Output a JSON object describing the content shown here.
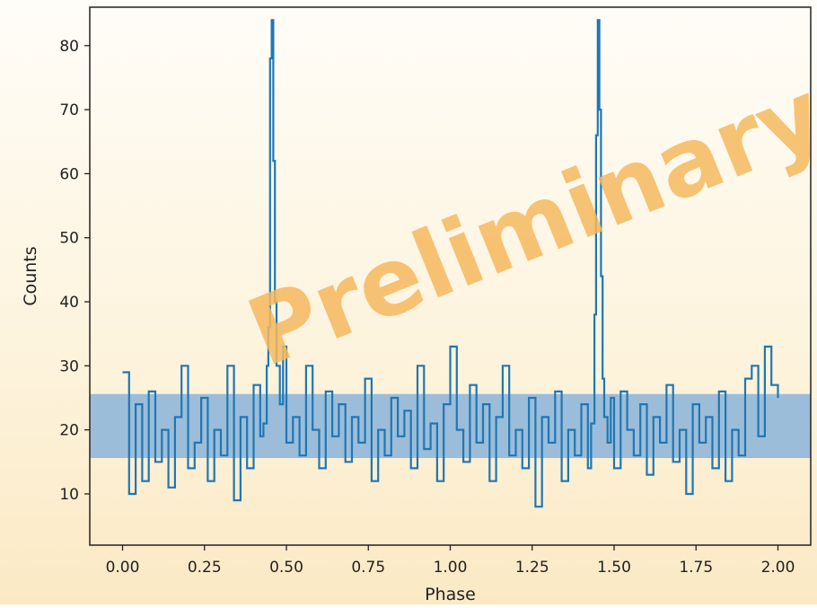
{
  "chart_data": {
    "type": "line",
    "title": "",
    "xlabel": "Phase",
    "ylabel": "Counts",
    "xlim": [
      -0.1,
      2.1
    ],
    "ylim": [
      2,
      86
    ],
    "x_ticks": [
      0.0,
      0.25,
      0.5,
      0.75,
      1.0,
      1.25,
      1.5,
      1.75,
      2.0
    ],
    "x_tick_labels": [
      "0.00",
      "0.25",
      "0.50",
      "0.75",
      "1.00",
      "1.25",
      "1.50",
      "1.75",
      "2.00"
    ],
    "y_ticks": [
      10,
      20,
      30,
      40,
      50,
      60,
      70,
      80
    ],
    "y_tick_labels": [
      "10",
      "20",
      "30",
      "40",
      "50",
      "60",
      "70",
      "80"
    ],
    "grid": false,
    "band": {
      "y0": 15.6,
      "y1": 25.6,
      "color": "#89b4d9"
    },
    "line_color": "#1f77b4",
    "watermark": "Preliminary",
    "watermark_color": "#f5b95f",
    "series": [
      {
        "x": [
          0.0,
          0.02,
          0.04,
          0.06,
          0.08,
          0.1,
          0.12,
          0.14,
          0.16,
          0.18,
          0.2,
          0.22,
          0.24,
          0.26,
          0.28,
          0.3,
          0.32,
          0.34,
          0.36,
          0.38,
          0.4,
          0.42,
          0.43,
          0.44,
          0.445,
          0.45,
          0.455,
          0.46,
          0.465,
          0.47,
          0.48,
          0.49,
          0.5,
          0.52,
          0.54,
          0.56,
          0.58,
          0.6,
          0.62,
          0.64,
          0.66,
          0.68,
          0.7,
          0.72,
          0.74,
          0.76,
          0.78,
          0.8,
          0.82,
          0.84,
          0.86,
          0.88,
          0.9,
          0.92,
          0.94,
          0.96,
          0.98,
          1.0,
          1.02,
          1.04,
          1.06,
          1.08,
          1.1,
          1.12,
          1.14,
          1.16,
          1.18,
          1.2,
          1.22,
          1.24,
          1.26,
          1.28,
          1.3,
          1.32,
          1.34,
          1.36,
          1.38,
          1.4,
          1.42,
          1.43,
          1.44,
          1.445,
          1.45,
          1.455,
          1.46,
          1.465,
          1.47,
          1.48,
          1.49,
          1.5,
          1.52,
          1.54,
          1.56,
          1.58,
          1.6,
          1.62,
          1.64,
          1.66,
          1.68,
          1.7,
          1.72,
          1.74,
          1.76,
          1.78,
          1.8,
          1.82,
          1.84,
          1.86,
          1.88,
          1.9,
          1.92,
          1.94,
          1.96,
          1.98,
          2.0
        ],
        "y": [
          29,
          10,
          24,
          12,
          26,
          15,
          20,
          11,
          22,
          30,
          14,
          18,
          25,
          12,
          20,
          16,
          30,
          9,
          22,
          14,
          27,
          19,
          21,
          30,
          36,
          78,
          84,
          62,
          40,
          30,
          24,
          33,
          18,
          22,
          16,
          30,
          20,
          14,
          26,
          19,
          24,
          15,
          22,
          18,
          28,
          12,
          20,
          16,
          25,
          19,
          23,
          14,
          30,
          17,
          21,
          12,
          24,
          33,
          20,
          15,
          27,
          18,
          24,
          12,
          22,
          30,
          16,
          20,
          14,
          25,
          8,
          22,
          18,
          26,
          12,
          20,
          16,
          24,
          14,
          21,
          38,
          66,
          84,
          70,
          44,
          28,
          22,
          18,
          25,
          14,
          26,
          20,
          16,
          24,
          13,
          22,
          18,
          27,
          15,
          20,
          10,
          24,
          18,
          22,
          14,
          26,
          12,
          20,
          16,
          28,
          30,
          19,
          33,
          27,
          25
        ]
      }
    ]
  }
}
